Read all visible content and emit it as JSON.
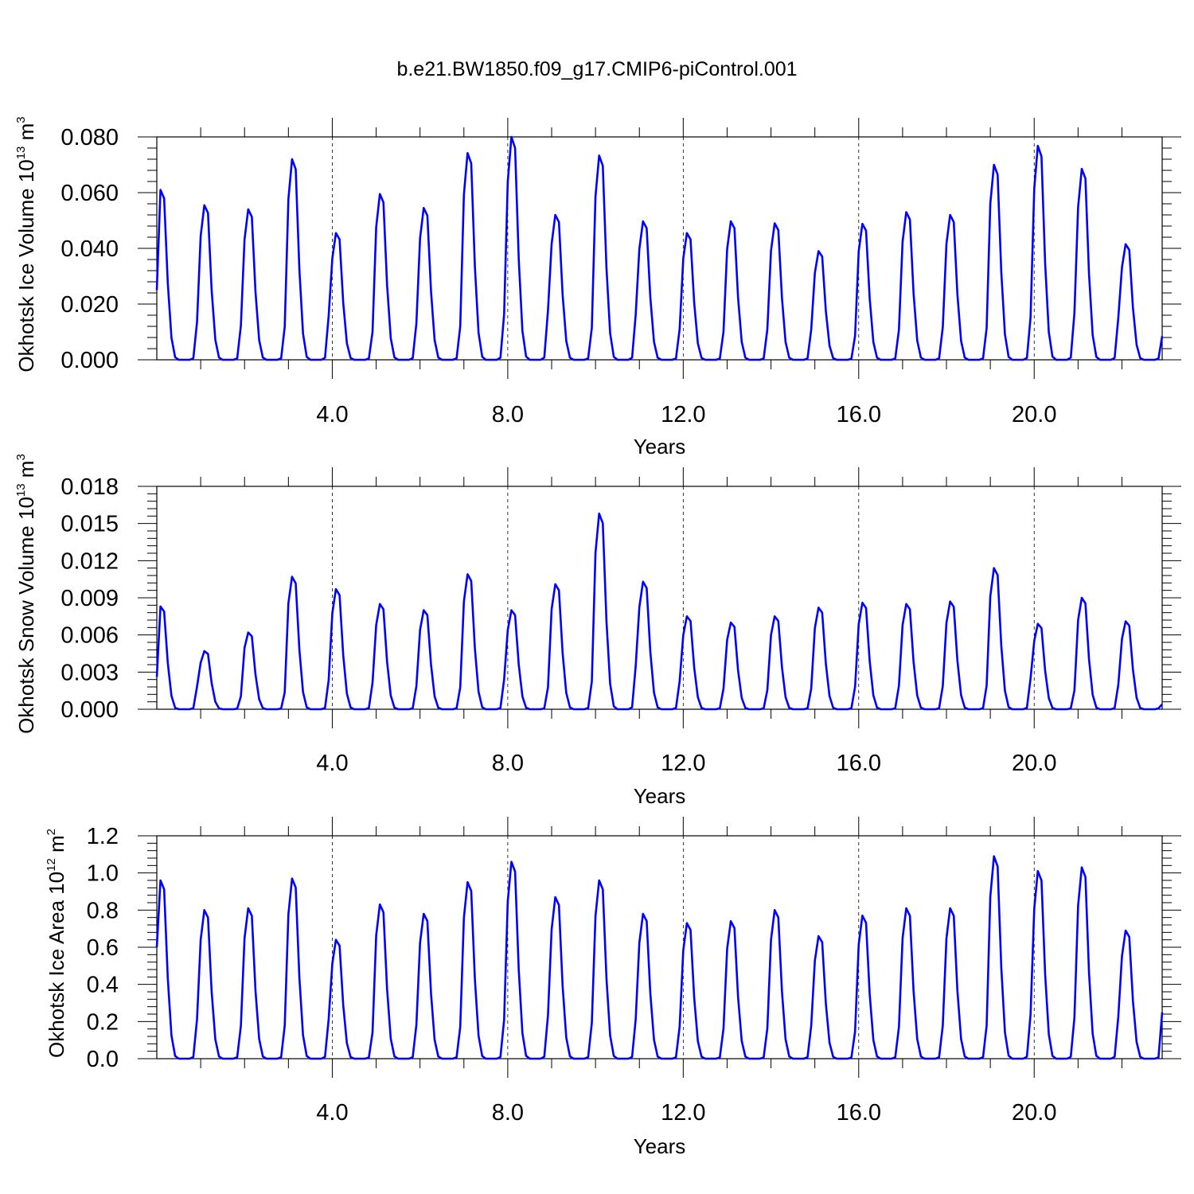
{
  "title": "b.e21.BW1850.f09_g17.CMIP6-piControl.001",
  "line_color": "#0000ff",
  "chart_data": [
    {
      "type": "line",
      "ylabel": {
        "text": "Okhotsk Ice Volume 10",
        "exp": "13",
        "unit": "m",
        "unit_exp": "3"
      },
      "xlabel": "Years",
      "ylim": [
        0,
        0.08
      ],
      "yticks": [
        0.0,
        0.02,
        0.04,
        0.06,
        0.08
      ],
      "ytick_labels": [
        "0.000",
        "0.020",
        "0.040",
        "0.060",
        "0.080"
      ],
      "xlim": [
        0,
        22.917
      ],
      "xticks": [
        4,
        8,
        12,
        16,
        20
      ],
      "xtick_labels": [
        "4.0",
        "8.0",
        "12.0",
        "16.0",
        "20.0"
      ],
      "grid": "dashed vertical at major x ticks",
      "series": [
        {
          "peaks": [
            0.061,
            0.0555,
            0.054,
            0.072,
            0.0455,
            0.0595,
            0.0545,
            0.0742,
            0.08,
            0.052,
            0.0733,
            0.0497,
            0.0455,
            0.0497,
            0.049,
            0.039,
            0.0488,
            0.053,
            0.052,
            0.07,
            0.0768,
            0.0685,
            0.0415
          ],
          "start": 0.025,
          "end": 0.0085
        }
      ]
    },
    {
      "type": "line",
      "ylabel": {
        "text": "Okhotsk Snow Volume 10",
        "exp": "13",
        "unit": "m",
        "unit_exp": "3"
      },
      "xlabel": "Years",
      "ylim": [
        0,
        0.018
      ],
      "yticks": [
        0.0,
        0.003,
        0.006,
        0.009,
        0.012,
        0.015,
        0.018
      ],
      "ytick_labels": [
        "0.000",
        "0.003",
        "0.006",
        "0.009",
        "0.012",
        "0.015",
        "0.018"
      ],
      "xlim": [
        0,
        22.917
      ],
      "xticks": [
        4,
        8,
        12,
        16,
        20
      ],
      "xtick_labels": [
        "4.0",
        "8.0",
        "12.0",
        "16.0",
        "20.0"
      ],
      "grid": "dashed vertical at major x ticks",
      "series": [
        {
          "peaks": [
            0.0083,
            0.0047,
            0.0062,
            0.0107,
            0.0097,
            0.0085,
            0.008,
            0.0109,
            0.008,
            0.0101,
            0.0158,
            0.0103,
            0.0075,
            0.007,
            0.0075,
            0.0082,
            0.0086,
            0.0085,
            0.0087,
            0.0114,
            0.0069,
            0.009,
            0.0071
          ],
          "start": 0.0026,
          "end": 0.0004
        }
      ]
    },
    {
      "type": "line",
      "ylabel": {
        "text": "Okhotsk Ice Area 10",
        "exp": "12",
        "unit": "m",
        "unit_exp": "2"
      },
      "xlabel": "Years",
      "ylim": [
        0,
        1.2
      ],
      "yticks": [
        0.0,
        0.2,
        0.4,
        0.6,
        0.8,
        1.0,
        1.2
      ],
      "ytick_labels": [
        "0.0",
        "0.2",
        "0.4",
        "0.6",
        "0.8",
        "1.0",
        "1.2"
      ],
      "xlim": [
        0,
        22.917
      ],
      "xticks": [
        4,
        8,
        12,
        16,
        20
      ],
      "xtick_labels": [
        "4.0",
        "8.0",
        "12.0",
        "16.0",
        "20.0"
      ],
      "grid": "dashed vertical at major x ticks",
      "series": [
        {
          "peaks": [
            0.96,
            0.8,
            0.81,
            0.97,
            0.64,
            0.83,
            0.78,
            0.95,
            1.06,
            0.87,
            0.96,
            0.78,
            0.73,
            0.74,
            0.8,
            0.66,
            0.77,
            0.81,
            0.81,
            1.09,
            1.01,
            1.03,
            0.69
          ],
          "start": 0.6,
          "end": 0.25
        }
      ]
    }
  ]
}
